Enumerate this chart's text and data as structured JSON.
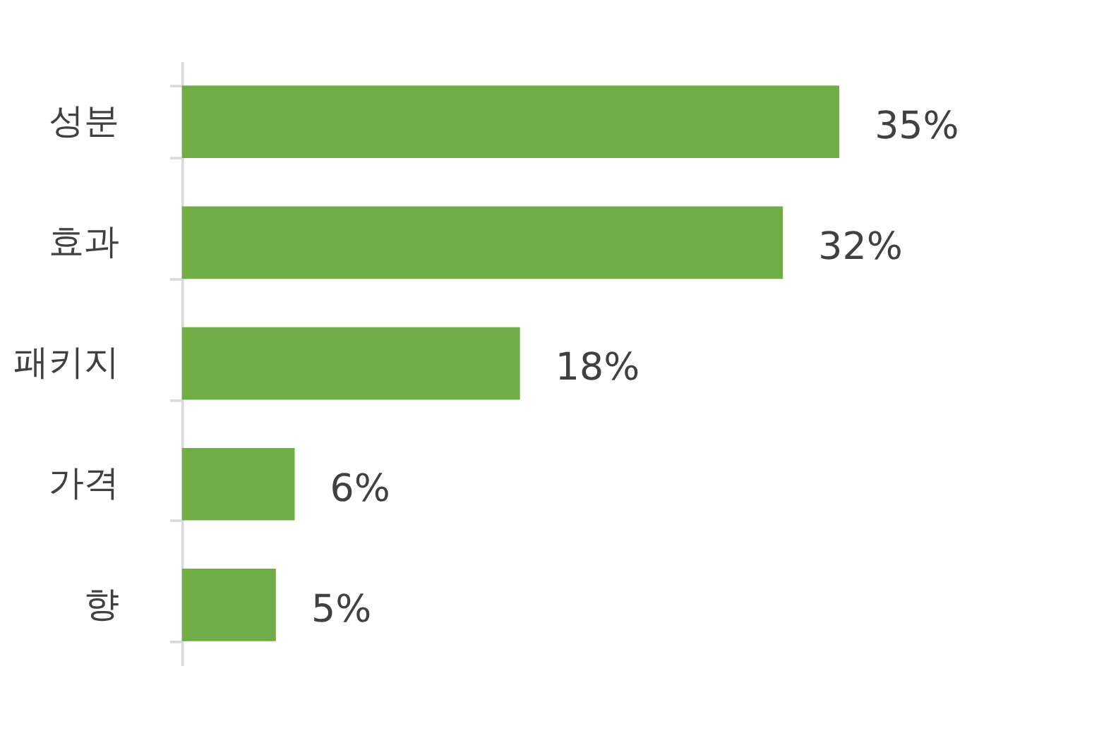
{
  "chart_data": {
    "type": "bar",
    "orientation": "horizontal",
    "categories": [
      "성분",
      "효과",
      "패키지",
      "가격",
      "향"
    ],
    "values": [
      35,
      32,
      18,
      6,
      5
    ],
    "value_labels": [
      "35%",
      "32%",
      "18%",
      "6%",
      "5%"
    ],
    "color": "#70ad47"
  }
}
